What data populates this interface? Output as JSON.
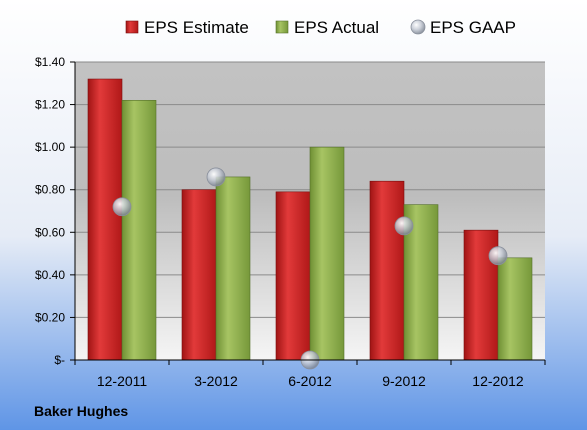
{
  "chart_data": {
    "type": "bar",
    "categories": [
      "12-2011",
      "3-2012",
      "6-2012",
      "9-2012",
      "12-2012"
    ],
    "series": [
      {
        "name": "EPS Estimate",
        "kind": "bar",
        "color": "#d42020",
        "values": [
          1.32,
          0.8,
          0.79,
          0.84,
          0.61
        ]
      },
      {
        "name": "EPS Actual",
        "kind": "bar",
        "color": "#8fb34a",
        "values": [
          1.22,
          0.86,
          1.0,
          0.73,
          0.48
        ]
      },
      {
        "name": "EPS GAAP",
        "kind": "scatter",
        "color": "#c4c8d0",
        "values": [
          0.72,
          0.86,
          0.0,
          0.63,
          0.49
        ]
      }
    ],
    "y_ticks": [
      {
        "value": 1.4,
        "label": "$1.40"
      },
      {
        "value": 1.2,
        "label": "$1.20"
      },
      {
        "value": 1.0,
        "label": "$1.00"
      },
      {
        "value": 0.8,
        "label": "$0.80"
      },
      {
        "value": 0.6,
        "label": "$0.60"
      },
      {
        "value": 0.4,
        "label": "$0.40"
      },
      {
        "value": 0.2,
        "label": "$0.20"
      },
      {
        "value": 0.0,
        "label": "$-"
      }
    ],
    "ylim": [
      0,
      1.4
    ],
    "grid": true,
    "legend_position": "top"
  },
  "company": "Baker Hughes"
}
